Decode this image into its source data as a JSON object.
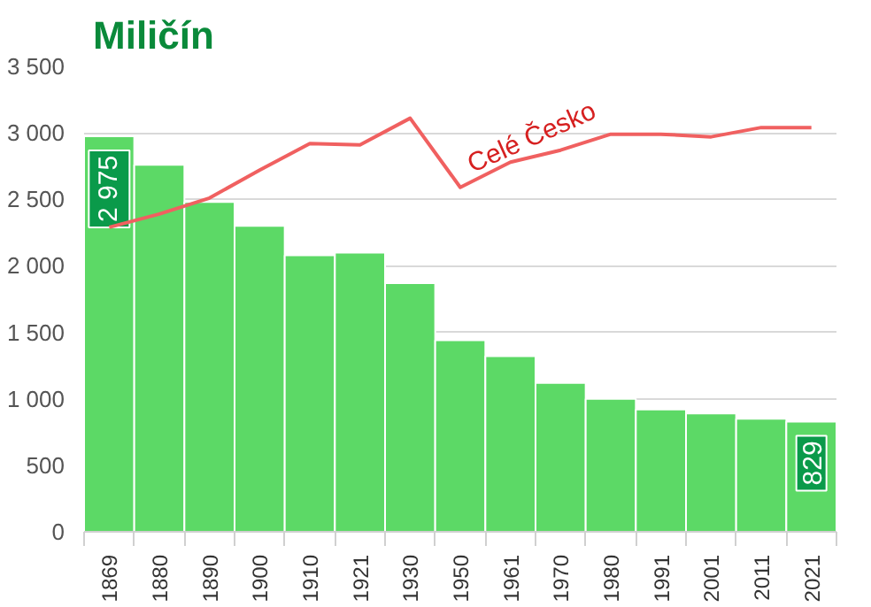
{
  "chart_data": {
    "type": "bar",
    "title": "Miličín",
    "categories": [
      "1869",
      "1880",
      "1890",
      "1900",
      "1910",
      "1921",
      "1930",
      "1950",
      "1961",
      "1970",
      "1980",
      "1991",
      "2001",
      "2011",
      "2021"
    ],
    "series": [
      {
        "color": "#5cd966",
        "values": [
          2975,
          2760,
          2480,
          2300,
          2080,
          2100,
          1870,
          1440,
          1320,
          1120,
          1000,
          920,
          890,
          850,
          829
        ],
        "value_labels": [
          "2 975",
          null,
          null,
          null,
          null,
          null,
          null,
          null,
          null,
          null,
          null,
          null,
          null,
          null,
          "829"
        ]
      },
      {
        "type": "line",
        "name": "Celé Česko",
        "color": "#f06060",
        "values": [
          2290,
          2390,
          2510,
          2720,
          2920,
          2910,
          3110,
          2590,
          2780,
          2870,
          2990,
          2990,
          2970,
          3040,
          3040
        ]
      }
    ],
    "ylim": [
      0,
      3500
    ],
    "yticks": [
      {
        "value": 0,
        "label": "0"
      },
      {
        "value": 500,
        "label": "500"
      },
      {
        "value": 1000,
        "label": "1 000"
      },
      {
        "value": 1500,
        "label": "1 500"
      },
      {
        "value": 2000,
        "label": "2 000"
      },
      {
        "value": 2500,
        "label": "2 500"
      },
      {
        "value": 3000,
        "label": "3 000"
      },
      {
        "value": 3500,
        "label": "3 500"
      }
    ],
    "grid": "y",
    "legend": false
  }
}
